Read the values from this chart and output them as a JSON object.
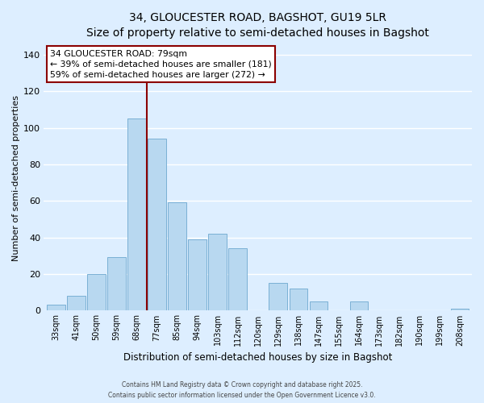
{
  "title_line1": "34, GLOUCESTER ROAD, BAGSHOT, GU19 5LR",
  "title_line2": "Size of property relative to semi-detached houses in Bagshot",
  "xlabel": "Distribution of semi-detached houses by size in Bagshot",
  "ylabel": "Number of semi-detached properties",
  "bar_labels": [
    "33sqm",
    "41sqm",
    "50sqm",
    "59sqm",
    "68sqm",
    "77sqm",
    "85sqm",
    "94sqm",
    "103sqm",
    "112sqm",
    "120sqm",
    "129sqm",
    "138sqm",
    "147sqm",
    "155sqm",
    "164sqm",
    "173sqm",
    "182sqm",
    "190sqm",
    "199sqm",
    "208sqm"
  ],
  "bar_values": [
    3,
    8,
    20,
    29,
    105,
    94,
    59,
    39,
    42,
    34,
    0,
    15,
    12,
    5,
    0,
    5,
    0,
    0,
    0,
    0,
    1
  ],
  "bar_color": "#b8d8f0",
  "bar_edge_color": "#7ab0d4",
  "grid_color": "#ffffff",
  "background_color": "#ddeeff",
  "ylim": [
    0,
    145
  ],
  "yticks": [
    0,
    20,
    40,
    60,
    80,
    100,
    120,
    140
  ],
  "vline_color": "#8b0000",
  "annotation_title": "34 GLOUCESTER ROAD: 79sqm",
  "annotation_line1": "← 39% of semi-detached houses are smaller (181)",
  "annotation_line2": "59% of semi-detached houses are larger (272) →",
  "annotation_box_color": "#ffffff",
  "annotation_box_edge": "#8b0000",
  "footer_line1": "Contains HM Land Registry data © Crown copyright and database right 2025.",
  "footer_line2": "Contains public sector information licensed under the Open Government Licence v3.0."
}
